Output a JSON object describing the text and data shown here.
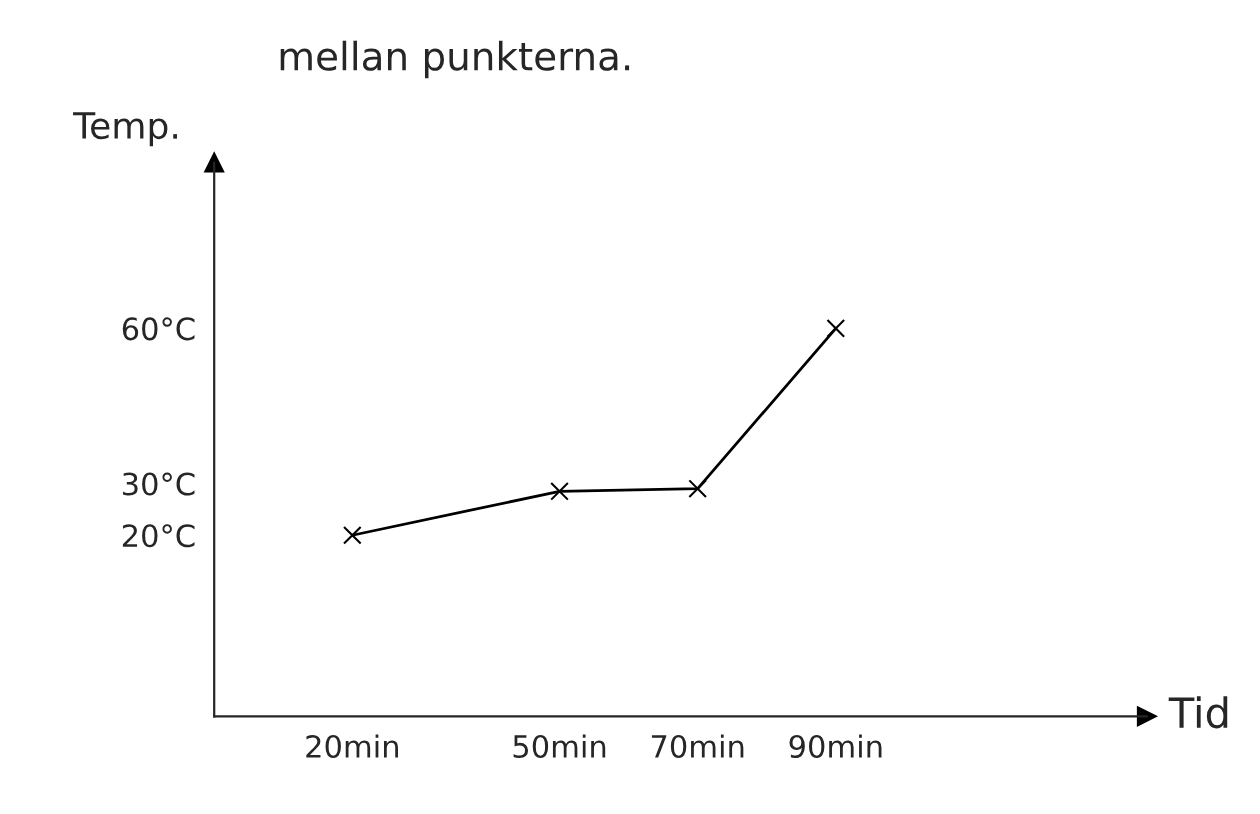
{
  "chart_data": {
    "type": "line",
    "xlabel": "Tid",
    "ylabel": "Temp.",
    "annotations": [
      "mellan punkterna."
    ],
    "x": [
      20,
      50,
      70,
      90
    ],
    "series": [
      {
        "color": "#000000",
        "values": [
          20,
          28.5,
          29,
          60
        ]
      }
    ],
    "xlim": [
      0,
      135
    ],
    "ylim": [
      -15,
      92
    ],
    "xticks": [
      {
        "value": 20,
        "label": "20min"
      },
      {
        "value": 50,
        "label": "50min"
      },
      {
        "value": 70,
        "label": "70min"
      },
      {
        "value": 90,
        "label": "90min"
      }
    ],
    "yticks": [
      {
        "value": 20,
        "label": "20°C"
      },
      {
        "value": 30,
        "label": "30°C"
      },
      {
        "value": 60,
        "label": "60°C"
      }
    ],
    "marker": "cross",
    "line_style": "solid",
    "grid": false,
    "legend": false
  }
}
